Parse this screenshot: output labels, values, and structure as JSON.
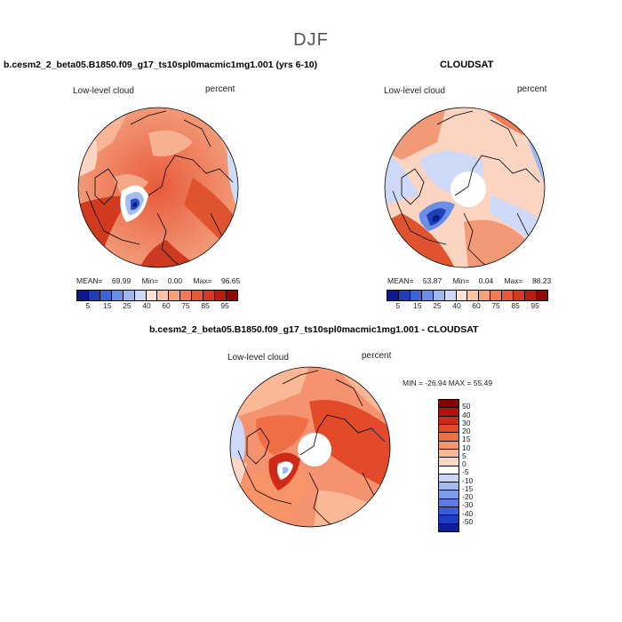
{
  "title": "DJF",
  "panels": [
    {
      "header": "b.cesm2_2_beta05.B1850.f09_g17_ts10spl0macmic1mg1.001 (yrs 6-10)",
      "variable": "Low-level cloud",
      "units": "percent",
      "stats": {
        "mean_label": "MEAN=",
        "mean": "69.99",
        "min_label": "Min=",
        "min": "0.00",
        "max_label": "Max=",
        "max": "96.65"
      }
    },
    {
      "header": "CLOUDSAT",
      "variable": "Low-level cloud",
      "units": "percent",
      "stats": {
        "mean_label": "MEAN=",
        "mean": "53.87",
        "min_label": "Min=",
        "min": "0.04",
        "max_label": "Max=",
        "max": "88.23"
      }
    },
    {
      "header": "b.cesm2_2_beta05.B1850.f09_g17_ts10spl0macmic1mg1.001 - CLOUDSAT",
      "variable": "Low-level cloud",
      "units": "percent",
      "stats_text": "MIN = -26.94 MAX =  55.49"
    }
  ],
  "colorbar_abs": {
    "colors": [
      "#0a1a8c",
      "#1f3fb8",
      "#3d64d6",
      "#6b8ee6",
      "#9fb8f0",
      "#cdd9f6",
      "#fbe2d2",
      "#f9c3a5",
      "#f6a07c",
      "#f07c56",
      "#e65a37",
      "#d63a20",
      "#b81e10",
      "#8f0a06"
    ],
    "labels": [
      "5",
      "15",
      "25",
      "40",
      "60",
      "75",
      "85",
      "95"
    ]
  },
  "colorbar_diff": {
    "colors": [
      "#8b0000",
      "#b3120b",
      "#cf2a17",
      "#e24a2a",
      "#ef6e45",
      "#f79468",
      "#fbb897",
      "#fdd7c4",
      "#ffffff",
      "#c9d6f7",
      "#a3baf0",
      "#7d9bea",
      "#5a7ce4",
      "#3a5edc",
      "#1f3ec8",
      "#0a1f9e"
    ],
    "labels": [
      "50",
      "40",
      "30",
      "20",
      "15",
      "10",
      "5",
      "0",
      "-5",
      "-10",
      "-15",
      "-20",
      "-30",
      "-40",
      "-50"
    ]
  },
  "chart_data": [
    {
      "type": "heatmap",
      "title": "b.cesm2_2_beta05.B1850.f09_g17_ts10spl0macmic1mg1.001 (yrs 6-10)",
      "projection": "north polar stereographic",
      "variable": "Low-level cloud",
      "units": "percent",
      "mean": 69.99,
      "min": 0.0,
      "max": 96.65,
      "contour_levels": [
        5,
        10,
        15,
        20,
        25,
        30,
        40,
        50,
        60,
        70,
        75,
        80,
        85,
        90,
        95
      ]
    },
    {
      "type": "heatmap",
      "title": "CLOUDSAT",
      "projection": "north polar stereographic",
      "variable": "Low-level cloud",
      "units": "percent",
      "mean": 53.87,
      "min": 0.04,
      "max": 88.23,
      "contour_levels": [
        5,
        10,
        15,
        20,
        25,
        30,
        40,
        50,
        60,
        70,
        75,
        80,
        85,
        90,
        95
      ]
    },
    {
      "type": "heatmap",
      "title": "b.cesm2_2_beta05.B1850.f09_g17_ts10spl0macmic1mg1.001 - CLOUDSAT",
      "projection": "north polar stereographic",
      "variable": "Low-level cloud",
      "units": "percent",
      "min": -26.94,
      "max": 55.49,
      "contour_levels": [
        -50,
        -40,
        -30,
        -20,
        -15,
        -10,
        -5,
        0,
        5,
        10,
        15,
        20,
        30,
        40,
        50
      ]
    }
  ]
}
